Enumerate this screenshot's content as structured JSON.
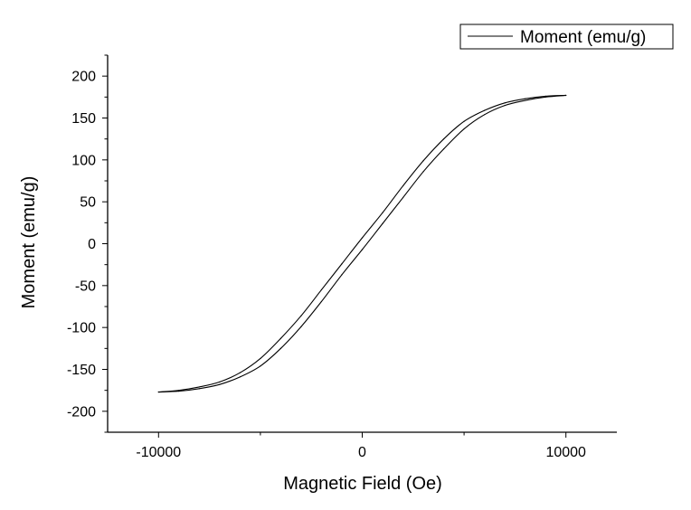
{
  "chart_data": {
    "type": "line",
    "title": "",
    "xlabel": "Magnetic Field (Oe)",
    "ylabel": "Moment (emu/g)",
    "xlim": [
      -12500,
      12500
    ],
    "ylim": [
      -225,
      225
    ],
    "xticks": [
      -10000,
      0,
      10000
    ],
    "yticks": [
      200,
      150,
      100,
      50,
      0,
      -50,
      -100,
      -150,
      -200
    ],
    "grid": false,
    "legend": "top-right",
    "line_color": "#000000",
    "series": [
      {
        "name": "Moment (emu/g)",
        "branch": "descending",
        "x": [
          10000,
          9000,
          8000,
          7000,
          6000,
          5000,
          4000,
          3000,
          2000,
          1000,
          0,
          -1000,
          -2000,
          -3000,
          -4000,
          -5000,
          -6000,
          -7000,
          -8000,
          -9000,
          -10000
        ],
        "values": [
          177,
          176,
          173,
          168,
          159,
          146,
          125,
          99,
          69,
          37,
          7,
          -24,
          -55,
          -86,
          -113,
          -137,
          -154,
          -165,
          -171,
          -175,
          -177
        ]
      },
      {
        "branch": "ascending",
        "x": [
          -10000,
          -9000,
          -8000,
          -7000,
          -6000,
          -5000,
          -4000,
          -3000,
          -2000,
          -1000,
          0,
          1000,
          2000,
          3000,
          4000,
          5000,
          6000,
          7000,
          8000,
          9000,
          10000
        ],
        "values": [
          -177,
          -176,
          -173,
          -168,
          -159,
          -146,
          -125,
          -99,
          -69,
          -37,
          -7,
          24,
          55,
          86,
          113,
          137,
          154,
          165,
          171,
          175,
          177
        ]
      }
    ]
  }
}
